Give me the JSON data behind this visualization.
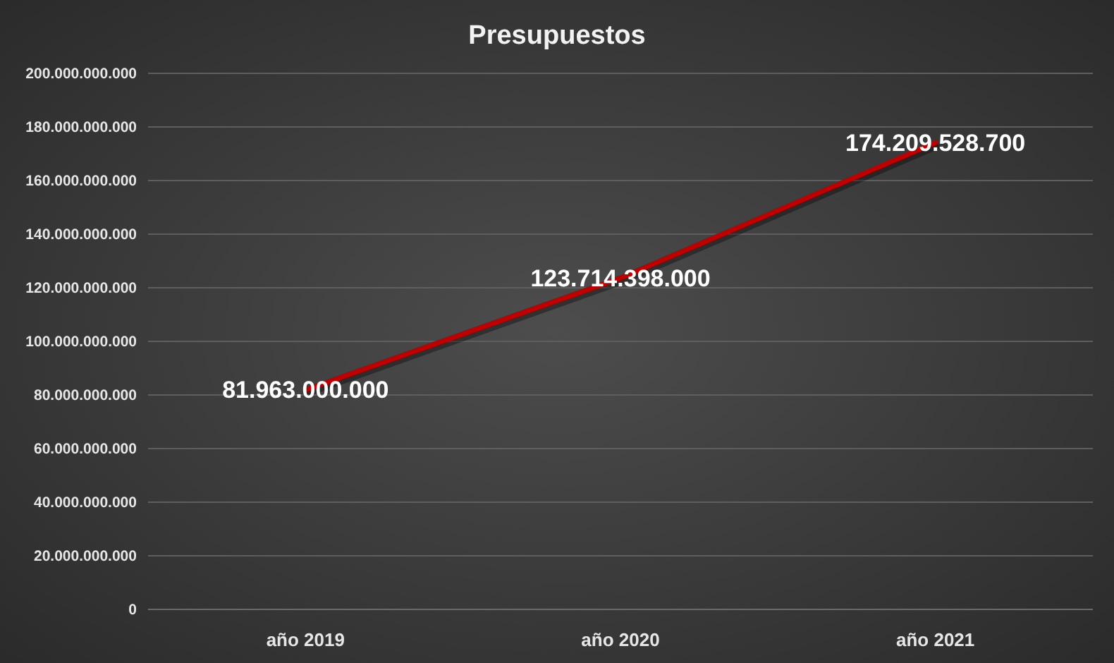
{
  "chart_data": {
    "type": "line",
    "title": "Presupuestos",
    "categories": [
      "año 2019",
      "año 2020",
      "año 2021"
    ],
    "series": [
      {
        "color": "#c00000",
        "values": [
          81963000000,
          123714398000,
          174209528700
        ]
      }
    ],
    "value_labels": [
      "81.963.000.000",
      "123.714.398.000",
      "174.209.528.700"
    ],
    "ylim": [
      0,
      200000000000
    ],
    "yticks": [
      {
        "value": 0,
        "label": "0"
      },
      {
        "value": 20000000000,
        "label": "20.000.000.000"
      },
      {
        "value": 40000000000,
        "label": "40.000.000.000"
      },
      {
        "value": 60000000000,
        "label": "60.000.000.000"
      },
      {
        "value": 80000000000,
        "label": "80.000.000.000"
      },
      {
        "value": 100000000000,
        "label": "100.000.000.000"
      },
      {
        "value": 120000000000,
        "label": "120.000.000.000"
      },
      {
        "value": 140000000000,
        "label": "140.000.000.000"
      },
      {
        "value": 160000000000,
        "label": "160.000.000.000"
      },
      {
        "value": 180000000000,
        "label": "180.000.000.000"
      },
      {
        "value": 200000000000,
        "label": "200.000.000.000"
      }
    ],
    "grid": "y",
    "marker": "none",
    "line_style": "solid"
  }
}
